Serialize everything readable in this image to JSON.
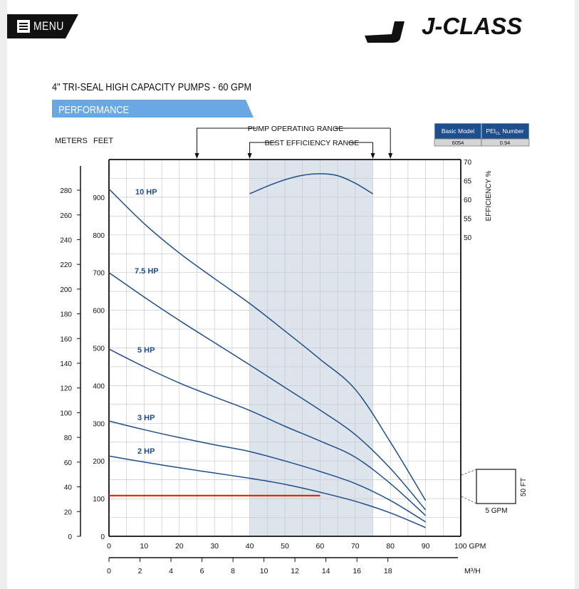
{
  "header": {
    "menu_label": "MENU",
    "brand": "J-CLASS",
    "menu_icon": "hamburger-icon"
  },
  "product_title": "4\" TRI-SEAL HIGH CAPACITY PUMPS - 60 GPM",
  "section_tab": "PERFORMANCE",
  "colors": {
    "curve": "#1f4e8c",
    "tab": "#6aa8e4",
    "bep_band": "#dde4ec",
    "system_line": "#e8251c",
    "table_header": "#1f4e8c"
  },
  "info_table": {
    "headers": {
      "model": "Basic Model",
      "pei_main": "PEI",
      "pei_sub": "CL",
      "pei_rest": " Number"
    },
    "values": {
      "model": "6054",
      "pei": "0.94"
    }
  },
  "scale_box": {
    "height_label": "50 FT",
    "width_label": "5 GPM"
  },
  "chart_data": {
    "type": "line",
    "x_gpm": {
      "ticks": [
        0,
        10,
        20,
        30,
        40,
        50,
        60,
        70,
        80,
        90
      ],
      "last_tick": "100 GPM",
      "range": [
        0,
        100
      ]
    },
    "x_m3h": {
      "ticks": [
        "0",
        "2",
        "4",
        "6",
        "8",
        "10",
        "12",
        "14",
        "16",
        "18"
      ],
      "unit": "M³/H",
      "range": [
        0,
        22.7
      ]
    },
    "y_feet": {
      "label": "FEET",
      "ticks": [
        "0",
        "100",
        "200",
        "300",
        "400",
        "500",
        "600",
        "700",
        "800",
        "900"
      ],
      "range": [
        0,
        1000
      ]
    },
    "y_meters": {
      "label": "METERS",
      "ticks": [
        "0",
        "20",
        "40",
        "60",
        "80",
        "100",
        "120",
        "140",
        "160",
        "180",
        "200",
        "220",
        "240",
        "260",
        "280"
      ]
    },
    "y_efficiency": {
      "label": "EFFICIENCY %",
      "ticks": [
        "50",
        "55",
        "60",
        "65",
        "70"
      ]
    },
    "pump_operating_range": {
      "label": "PUMP OPERATING RANGE",
      "x": [
        25,
        80
      ]
    },
    "best_efficiency_range": {
      "label": "BEST EFFICIENCY RANGE",
      "x": [
        40,
        75
      ]
    },
    "series": [
      {
        "name": "10 HP",
        "x": [
          0,
          10,
          20,
          30,
          40,
          50,
          60,
          70,
          80,
          90
        ],
        "y": [
          922,
          830,
          752,
          684,
          618,
          545,
          470,
          390,
          250,
          95
        ]
      },
      {
        "name": "7.5 HP",
        "x": [
          0,
          10,
          20,
          30,
          40,
          50,
          60,
          70,
          80,
          90
        ],
        "y": [
          700,
          635,
          573,
          514,
          455,
          395,
          335,
          270,
          180,
          70
        ]
      },
      {
        "name": "5 HP",
        "x": [
          0,
          10,
          20,
          30,
          40,
          50,
          60,
          70,
          80,
          90
        ],
        "y": [
          497,
          450,
          407,
          370,
          334,
          292,
          253,
          210,
          140,
          55
        ]
      },
      {
        "name": "3 HP",
        "x": [
          0,
          10,
          20,
          30,
          40,
          50,
          60,
          70,
          80,
          90
        ],
        "y": [
          306,
          283,
          262,
          243,
          225,
          200,
          172,
          140,
          95,
          38
        ]
      },
      {
        "name": "2 HP",
        "x": [
          0,
          10,
          20,
          30,
          40,
          50,
          60,
          70,
          80,
          90
        ],
        "y": [
          213,
          197,
          182,
          168,
          154,
          138,
          117,
          93,
          62,
          23
        ]
      }
    ],
    "efficiency_curve": {
      "x": [
        40,
        45,
        50,
        55,
        60,
        65,
        70,
        75
      ],
      "y": [
        61.5,
        63.5,
        65.2,
        66.4,
        66.8,
        66.3,
        64.3,
        61.5
      ]
    },
    "system_line": {
      "x": [
        0,
        60
      ],
      "y": [
        108,
        108
      ]
    }
  }
}
